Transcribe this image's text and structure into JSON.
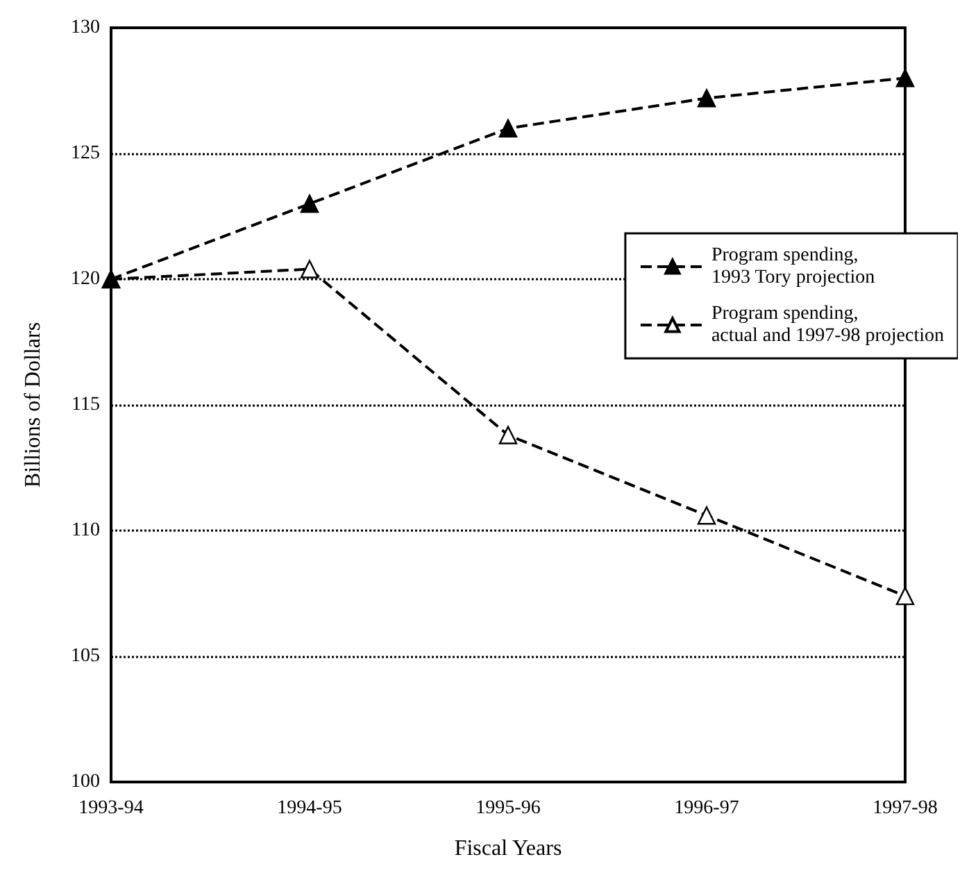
{
  "chart_data": {
    "type": "line",
    "xlabel": "Fiscal Years",
    "ylabel": "Billions of Dollars",
    "categories": [
      "1993-94",
      "1994-95",
      "1995-96",
      "1996-97",
      "1997-98"
    ],
    "series": [
      {
        "name": "Program spending,\n1993 Tory projection",
        "color": "#000000",
        "values": [
          120,
          123,
          126,
          127.2,
          128
        ]
      },
      {
        "name": "Program spending,\nactual and 1997-98 projection",
        "color": "#000000",
        "values": [
          120,
          120.4,
          113.8,
          110.6,
          107.4
        ]
      }
    ],
    "ylim": [
      100,
      130
    ],
    "yticks": [
      100,
      105,
      110,
      115,
      120,
      125,
      130
    ],
    "grid": "y",
    "legend": "right",
    "marker": "triangle",
    "line_style": "dashed"
  }
}
